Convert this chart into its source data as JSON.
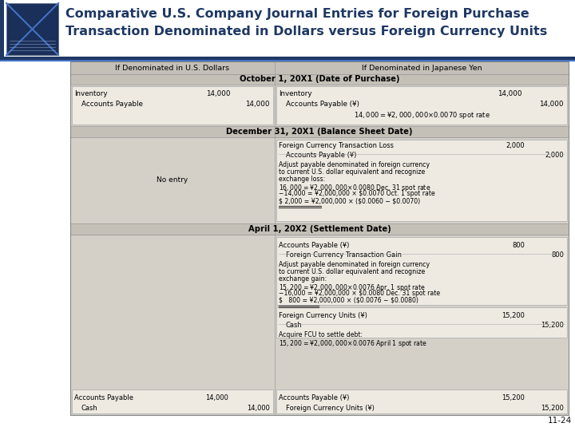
{
  "title_line1": "Comparative U.S. Company Journal Entries for Foreign Purchase",
  "title_line2": "Transaction Denominated in Dollars versus Foreign Currency Units",
  "title_color": "#1F3864",
  "title_fontsize": 11.5,
  "bg_color": "#FFFFFF",
  "table_bg": "#D4D0C8",
  "header_bg": "#C4C0B8",
  "box_bg": "#EEEAE2",
  "slide_number": "11-24",
  "header_left": "If Denominated in U.S. Dollars",
  "header_right": "If Denominated in Japanese Yen",
  "section1_title": "October 1, 20X1 (Date of Purchase)",
  "section2_title": "December 31, 20X1 (Balance Sheet Date)",
  "section3_title": "April 1, 20X2 (Settlement Date)"
}
